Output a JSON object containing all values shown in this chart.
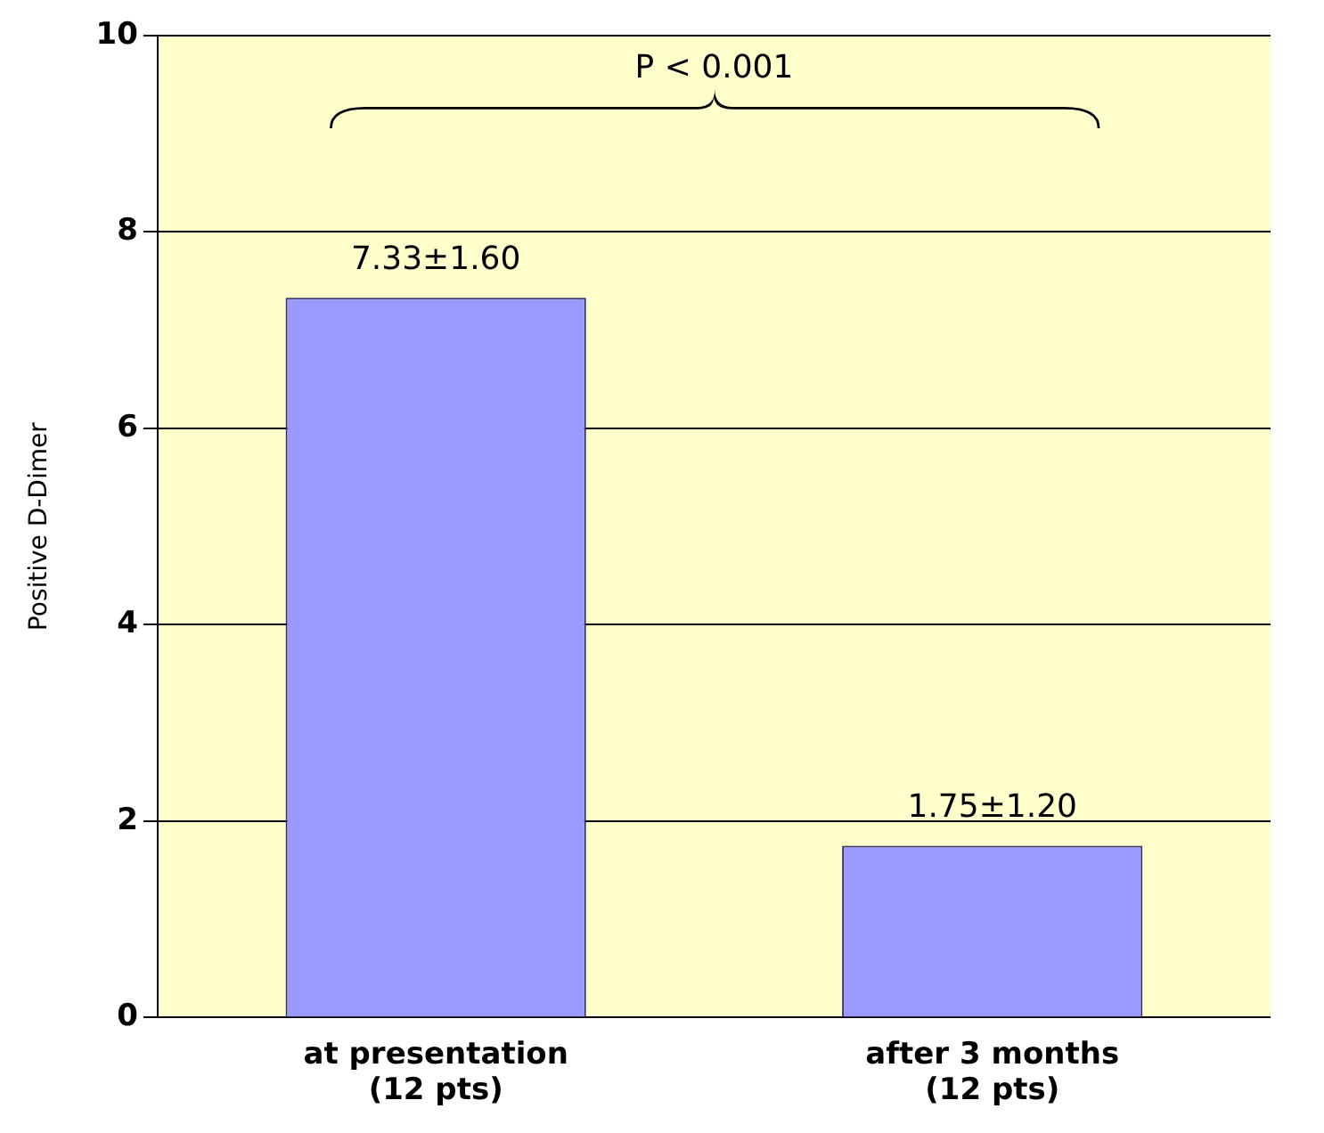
{
  "chart_data": {
    "type": "bar",
    "ylabel": "Positive D-Dimer",
    "categories": [
      "at presentation\n(12 pts)",
      "after 3 months\n(12 pts)"
    ],
    "values": [
      7.33,
      1.75
    ],
    "color": "#9999ff",
    "value_labels": [
      "7.33±1.60",
      "1.75±1.20"
    ],
    "annotations": [
      "P < 0.001"
    ],
    "ylim": [
      0,
      10
    ],
    "yticks": [
      0,
      2,
      4,
      6,
      8,
      10
    ],
    "grid": "y",
    "legend": false
  }
}
